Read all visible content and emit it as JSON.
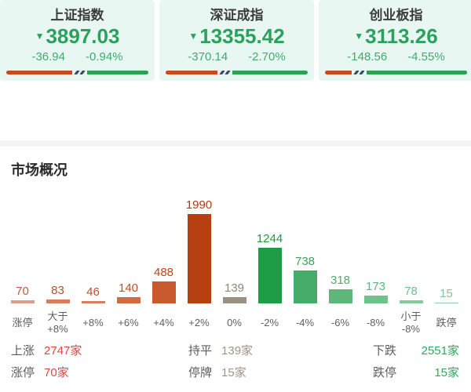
{
  "indices": {
    "cards": [
      {
        "name": "上证指数",
        "arrow": "▼",
        "direction": "down",
        "value": "3897.03",
        "change": "-36.94",
        "change_pct": "-0.94%",
        "up_ratio": 52,
        "down_ratio": 48
      },
      {
        "name": "深证成指",
        "arrow": "▼",
        "direction": "down",
        "value": "13355.42",
        "change": "-370.14",
        "change_pct": "-2.70%",
        "up_ratio": 41,
        "down_ratio": 59
      },
      {
        "name": "创业板指",
        "arrow": "▼",
        "direction": "down",
        "value": "3113.26",
        "change": "-148.56",
        "change_pct": "-4.55%",
        "up_ratio": 21,
        "down_ratio": 79
      }
    ]
  },
  "section": {
    "title": "市场概况"
  },
  "chart_data": {
    "type": "bar",
    "title": "市场概况",
    "categories": [
      "涨停",
      "大于+8%",
      "+8%",
      "+6%",
      "+4%",
      "+2%",
      "0%",
      "-2%",
      "-4%",
      "-6%",
      "-8%",
      "小于-8%",
      "跌停"
    ],
    "categories_display": [
      [
        "涨停"
      ],
      [
        "大于",
        "+8%"
      ],
      [
        "+8%"
      ],
      [
        "+6%"
      ],
      [
        "+4%"
      ],
      [
        "+2%"
      ],
      [
        "0%"
      ],
      [
        "-2%"
      ],
      [
        "-4%"
      ],
      [
        "-6%"
      ],
      [
        "-8%"
      ],
      [
        "小于",
        "-8%"
      ],
      [
        "跌停"
      ]
    ],
    "values": [
      70,
      83,
      46,
      140,
      488,
      1990,
      139,
      1244,
      738,
      318,
      173,
      78,
      15
    ],
    "bar_colors": [
      "#de9e86",
      "#d37f5c",
      "#d37f5c",
      "#cf6a42",
      "#c95a30",
      "#b74012",
      "#9b9183",
      "#1e9c46",
      "#46ab68",
      "#5fb67b",
      "#72c18b",
      "#83ca99",
      "#96d2a8"
    ],
    "label_colors": [
      "#c05a3c",
      "#bb4e2b",
      "#bb4e2b",
      "#bf4e26",
      "#bd4418",
      "#b23a10",
      "#8f8678",
      "#1e9c46",
      "#3ba25c",
      "#4faa6c",
      "#5fb37a",
      "#6fbd89",
      "#7fc697"
    ],
    "ylim": [
      0,
      1990
    ],
    "value_labels": true,
    "grid": false,
    "legend": false
  },
  "stats": {
    "rows": [
      [
        {
          "label": "上涨",
          "value": "2747家",
          "tone": "red"
        },
        {
          "label": "持平",
          "value": "139家",
          "tone": "neutral"
        },
        {
          "label": "下跌",
          "value": "2551家",
          "tone": "green"
        }
      ],
      [
        {
          "label": "涨停",
          "value": "70家",
          "tone": "red"
        },
        {
          "label": "停牌",
          "value": "15家",
          "tone": "neutral"
        },
        {
          "label": "跌停",
          "value": "15家",
          "tone": "green"
        }
      ]
    ]
  },
  "colors": {
    "index_green": "#2aa25c",
    "change_green": "#3fab6e",
    "ratio_red": "#c54a20",
    "ratio_green": "#2da14f",
    "ratio_slash": "#3a4a63",
    "card_bg": "#e9f7f3",
    "stat_red": "#e0483d",
    "stat_green": "#2fa95c",
    "stat_neutral": "#a09585"
  }
}
